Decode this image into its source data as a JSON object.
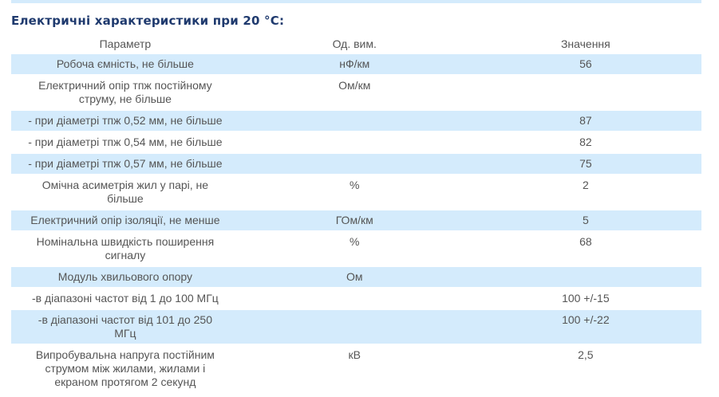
{
  "title": "Електричні характеристики при 20 °С:",
  "headers": [
    "Параметр",
    "Од. вим.",
    "Значення"
  ],
  "rows": [
    {
      "param": "Робоча ємність, не більше",
      "unit": "нФ/км",
      "value": "56",
      "blue": true
    },
    {
      "param": "Електричний опір тпж постійному\nструму, не більше",
      "unit": "Ом/км",
      "value": "",
      "blue": false
    },
    {
      "param": "- при діаметрі тпж 0,52 мм, не більше",
      "unit": "",
      "value": "87",
      "blue": true
    },
    {
      "param": "- при діаметрі тпж 0,54 мм, не більше",
      "unit": "",
      "value": "82",
      "blue": false
    },
    {
      "param": "- при діаметрі тпж 0,57 мм, не більше",
      "unit": "",
      "value": "75",
      "blue": true
    },
    {
      "param": "Омічна асиметрія жил у парі, не\nбільше",
      "unit": "%",
      "value": "2",
      "blue": false
    },
    {
      "param": "Електричний опір ізоляції, не менше",
      "unit": "ГОм/км",
      "value": "5",
      "blue": true
    },
    {
      "param": "Номінальна швидкість поширення\nсигналу",
      "unit": "%",
      "value": "68",
      "blue": false
    },
    {
      "param": "Модуль хвильового опору",
      "unit": "Ом",
      "value": "",
      "blue": true
    },
    {
      "param": "-в діапазоні частот від 1 до 100 МГц",
      "unit": "",
      "value": "100 +/-15",
      "blue": false
    },
    {
      "param": "-в діапазоні частот від 101 до 250\nМГц",
      "unit": "",
      "value": "100 +/-22",
      "blue": true
    },
    {
      "param": "Випробувальна напруга постійним\nструмом між жилами, жилами і\nекраном протягом 2 секунд",
      "unit": "кВ",
      "value": "2,5",
      "blue": false
    }
  ],
  "colors": {
    "row_highlight": "#d4ebfc",
    "title": "#1f3a6e",
    "text": "#555555"
  }
}
